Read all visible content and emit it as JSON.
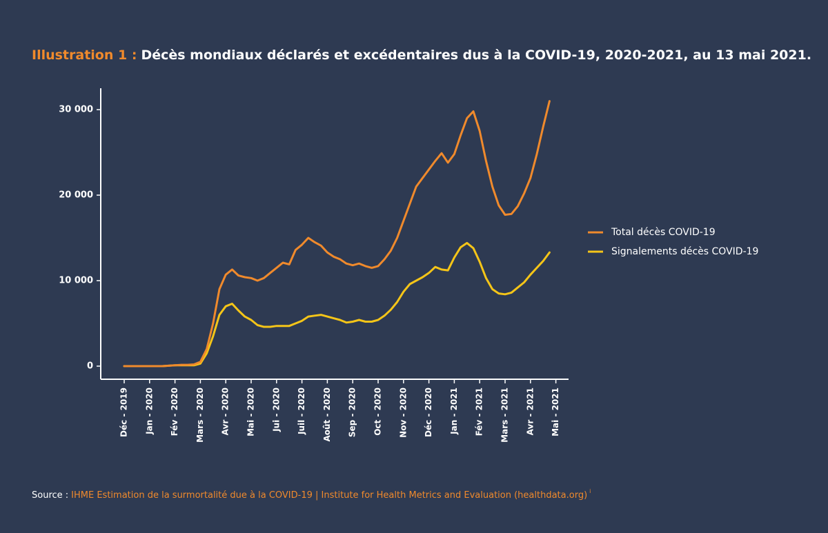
{
  "chart_data": {
    "type": "line",
    "title": {
      "label": "Illustration 1 :",
      "text": "Décès mondiaux déclarés et excédentaires dus à la COVID-19, 2020-2021, au 13 mai 2021."
    },
    "categories": [
      "Déc - 2019",
      null,
      null,
      null,
      "Jan - 2020",
      null,
      null,
      null,
      "Fév - 2020",
      null,
      null,
      null,
      "Mars - 2020",
      null,
      null,
      null,
      "Avr - 2020",
      null,
      null,
      null,
      "Mai - 2020",
      null,
      null,
      null,
      "Jui - 2020",
      null,
      null,
      null,
      "Juil - 2020",
      null,
      null,
      null,
      "Août - 2020",
      null,
      null,
      null,
      "Sep - 2020",
      null,
      null,
      null,
      "Oct - 2020",
      null,
      null,
      null,
      "Nov - 2020",
      null,
      null,
      null,
      "Déc - 2020",
      null,
      null,
      null,
      "Jan - 2021",
      null,
      null,
      null,
      "Fév - 2021",
      null,
      null,
      null,
      "Mars - 2021",
      null,
      null,
      null,
      "Avr - 2021",
      null,
      null,
      null,
      "Mai - 2021"
    ],
    "series": [
      {
        "name": "Total décès COVID-19",
        "color": "#f08a2c",
        "values": [
          0,
          0,
          0,
          0,
          0,
          0,
          0,
          50,
          100,
          150,
          150,
          200,
          500,
          2000,
          5000,
          9000,
          10700,
          11300,
          10600,
          10400,
          10300,
          10000,
          10300,
          10900,
          11500,
          12100,
          11900,
          13600,
          14200,
          15000,
          14500,
          14100,
          13300,
          12800,
          12500,
          12000,
          11800,
          12000,
          11700,
          11500,
          11700,
          12500,
          13500,
          15000,
          17000,
          19000,
          21000,
          22000,
          23000,
          24000,
          24900,
          23800,
          24800,
          27000,
          29000,
          29800,
          27500,
          24000,
          21000,
          18800,
          17700,
          17800,
          18700,
          20200,
          22000,
          24800,
          28000,
          31000,
          null
        ]
      },
      {
        "name": "Signalements décès COVID-19",
        "color": "#f5c518",
        "values": [
          0,
          0,
          0,
          0,
          0,
          0,
          0,
          50,
          100,
          100,
          100,
          100,
          300,
          1500,
          3500,
          6000,
          7000,
          7300,
          6500,
          5800,
          5400,
          4800,
          4600,
          4600,
          4700,
          4700,
          4700,
          5000,
          5300,
          5800,
          5900,
          6000,
          5800,
          5600,
          5400,
          5100,
          5200,
          5400,
          5200,
          5200,
          5400,
          5900,
          6600,
          7500,
          8700,
          9600,
          10000,
          10400,
          10900,
          11600,
          11300,
          11200,
          12700,
          13900,
          14400,
          13800,
          12200,
          10300,
          9000,
          8500,
          8400,
          8600,
          9200,
          9800,
          10700,
          11500,
          12300,
          13300,
          null
        ]
      }
    ],
    "ylim": [
      -1000,
      32500
    ],
    "yticks": [
      0,
      {
        "value": 10000,
        "label": "10 000"
      },
      {
        "value": 20000,
        "label": "20 000"
      },
      {
        "value": 30000,
        "label": "30 000"
      }
    ],
    "legend": "right",
    "source": {
      "label": "Source :",
      "text": "IHME Estimation de la surmortalité due à la COVID-19 | Institute for Health Metrics and Evaluation (healthdata.org)",
      "note": "i"
    }
  }
}
